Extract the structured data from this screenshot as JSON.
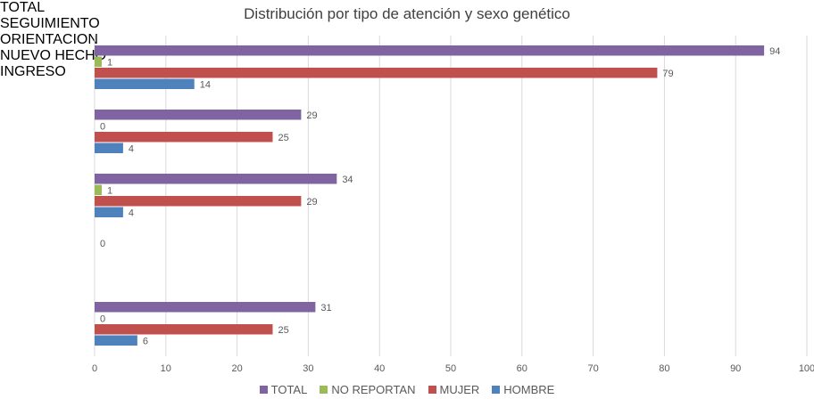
{
  "chart_data": {
    "type": "bar",
    "orientation": "horizontal",
    "title": "Distribución por tipo de atención y sexo genético",
    "categories": [
      "TOTAL",
      "SEGUIMIENTO",
      "ORIENTACION",
      "NUEVO HECHO",
      "INGRESO"
    ],
    "series": [
      {
        "name": "TOTAL",
        "color": "#8064a2",
        "values": [
          94,
          29,
          34,
          0,
          31
        ]
      },
      {
        "name": "NO REPORTAN",
        "color": "#9bbb59",
        "values": [
          1,
          0,
          1,
          null,
          0
        ]
      },
      {
        "name": "MUJER",
        "color": "#c0504d",
        "values": [
          79,
          25,
          29,
          null,
          25
        ]
      },
      {
        "name": "HOMBRE",
        "color": "#4f81bd",
        "values": [
          14,
          4,
          4,
          null,
          6
        ]
      }
    ],
    "xlim": [
      0,
      100
    ],
    "xticks": [
      0,
      10,
      20,
      30,
      40,
      50,
      60,
      70,
      80,
      90,
      100
    ],
    "grid": true,
    "legend": "bottom"
  }
}
